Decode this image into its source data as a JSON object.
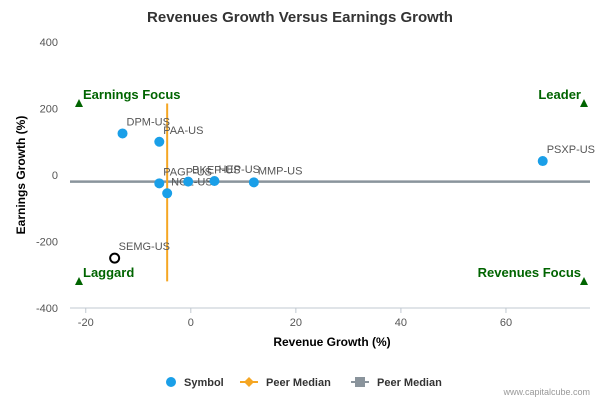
{
  "chart_data": {
    "type": "scatter",
    "title": "Revenues Growth Versus Earnings Growth",
    "xlabel": "Revenue Growth (%)",
    "ylabel": "Earnings Growth (%)",
    "xlim": [
      -23,
      76
    ],
    "ylim": [
      -400,
      400
    ],
    "x_ticks": [
      -20,
      0,
      20,
      40,
      60
    ],
    "y_ticks": [
      -400,
      -200,
      0,
      200,
      400
    ],
    "grid": false,
    "points": [
      {
        "label": "DPM-US",
        "x": -13,
        "y": 125
      },
      {
        "label": "PAA-US",
        "x": -6,
        "y": 100
      },
      {
        "label": "PAGP-US",
        "x": -6,
        "y": -25
      },
      {
        "label": "NGL-US",
        "x": -4.5,
        "y": -55
      },
      {
        "label": "BKEP-US",
        "x": -0.5,
        "y": -20
      },
      {
        "label": "HEP-US",
        "x": 4.5,
        "y": -18
      },
      {
        "label": "MMP-US",
        "x": 12,
        "y": -22
      },
      {
        "label": "PSXP-US",
        "x": 67,
        "y": 42
      },
      {
        "label": "SEMG-US",
        "x": -14.5,
        "y": -250,
        "hollow": true
      }
    ],
    "peer_median": {
      "x": -4.5,
      "y": -20,
      "x_line_range": [
        -320,
        215
      ],
      "y_line_range": [
        -23,
        76
      ]
    },
    "quadrants": {
      "top_left": "Earnings Focus",
      "top_right": "Leader",
      "bottom_left": "Laggard",
      "bottom_right": "Revenues Focus"
    },
    "legend": [
      "Symbol",
      "Peer Median",
      "Peer Median"
    ],
    "legend_position": "bottom",
    "colors": {
      "symbol": "#1a9fe8",
      "peer_median_vertical": "#f5a623",
      "peer_median_horizontal": "#8a949c",
      "quadrant_text": "#006400",
      "triangle": "#006400"
    }
  },
  "credit": "www.capitalcube.com"
}
